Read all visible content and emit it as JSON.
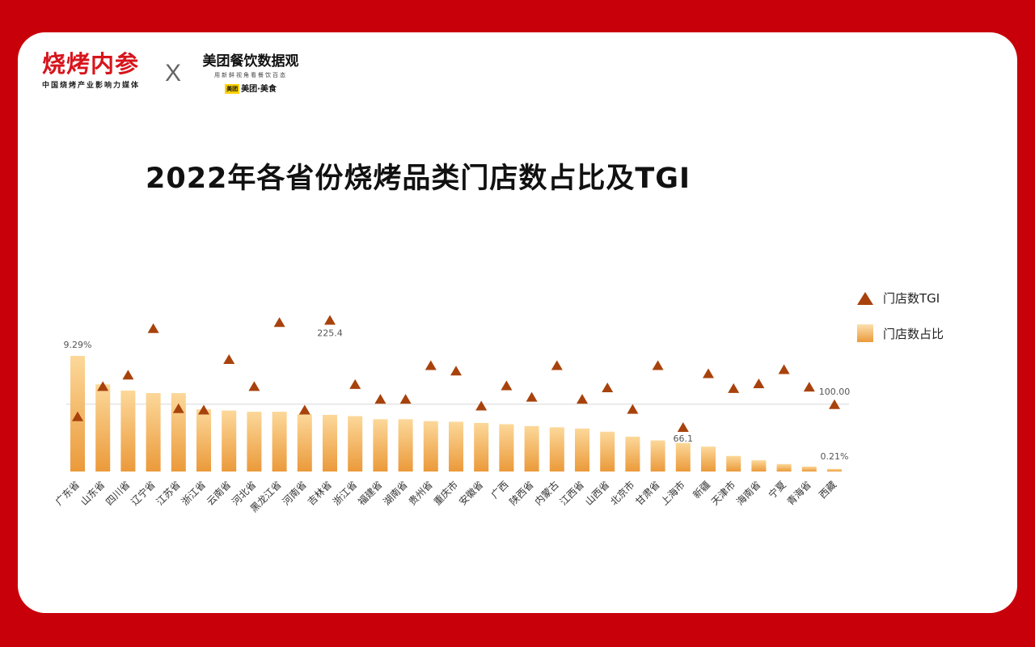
{
  "header": {
    "logo_left": "烧烤内参",
    "logo_left_sub": "中国烧烤产业影响力媒体",
    "separator": "X",
    "logo_right": "美团餐饮数据观",
    "logo_right_sub": "用新鲜视角看餐饮百态",
    "logo_right_badge": "美团",
    "logo_right_brand": "美团·美食"
  },
  "colors": {
    "background": "#c8000a",
    "bar_top": "#fcd89a",
    "bar_bottom": "#eb9a3a",
    "marker": "#a8420c",
    "brand_red": "#d7141c"
  },
  "chart_data": {
    "type": "bar",
    "title": "2022年各省份烧烤品类门店数占比及TGI",
    "categories": [
      "广东省",
      "山东省",
      "四川省",
      "辽宁省",
      "江苏省",
      "浙江省",
      "云南省",
      "河北省",
      "黑龙江省",
      "河南省",
      "吉林省",
      "浙江省",
      "福建省",
      "湖南省",
      "贵州省",
      "重庆市",
      "安徽省",
      "广西",
      "陕西省",
      "内蒙古",
      "江西省",
      "山西省",
      "北京市",
      "甘肃省",
      "上海市",
      "新疆",
      "天津市",
      "海南省",
      "宁夏",
      "青海省",
      "西藏"
    ],
    "series": [
      {
        "name": "门店数占比",
        "type": "bar",
        "values": [
          9.29,
          7.0,
          6.5,
          6.3,
          6.3,
          5.0,
          4.9,
          4.8,
          4.8,
          4.6,
          4.55,
          4.45,
          4.2,
          4.2,
          4.05,
          4.0,
          3.9,
          3.8,
          3.65,
          3.55,
          3.45,
          3.2,
          2.8,
          2.5,
          2.3,
          2.0,
          1.25,
          0.9,
          0.6,
          0.4,
          0.21
        ]
      },
      {
        "name": "门店数TGI",
        "type": "scatter",
        "marker": "triangle",
        "values": [
          82,
          127,
          144,
          213,
          94,
          92,
          167,
          127,
          222,
          92,
          225.4,
          130,
          108,
          108,
          158,
          150,
          98,
          128,
          111,
          158,
          108,
          125,
          93,
          158,
          66.1,
          146,
          124,
          131,
          152,
          126,
          100.0
        ]
      }
    ],
    "data_labels": {
      "first_bar": "9.29%",
      "last_bar": "0.21%",
      "tgi_max": "225.4",
      "tgi_min": "66.1",
      "tgi_last": "100.00"
    },
    "reference_line": 100,
    "ylim_bar": [
      0,
      9.29
    ],
    "ylim_tgi": [
      0,
      260
    ],
    "legend_position": "right",
    "grid": false
  }
}
